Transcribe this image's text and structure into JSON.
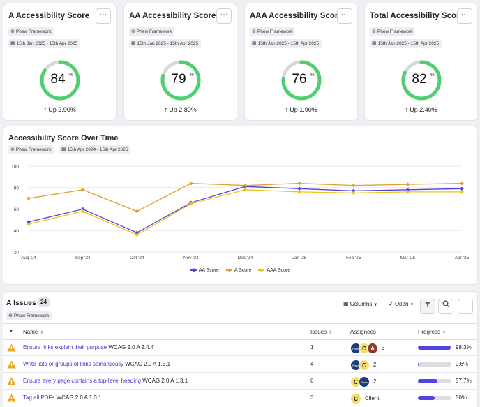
{
  "score_cards": [
    {
      "title": "A Accessibility Score",
      "framework": "Phew Framework",
      "date_range": "15th Jan 2025 - 15th Apr 2025",
      "score": 84,
      "score_suffix": "%",
      "trend": "Up 2.90%"
    },
    {
      "title": "AA Accessibility Score",
      "framework": "Phew Framework",
      "date_range": "15th Jan 2025 - 15th Apr 2025",
      "score": 79,
      "score_suffix": "%",
      "trend": "Up 2.80%"
    },
    {
      "title": "AAA Accessibility Score",
      "framework": "Phew Framework",
      "date_range": "15th Jan 2025 - 15th Apr 2025",
      "score": 76,
      "score_suffix": "%",
      "trend": "Up 1.90%"
    },
    {
      "title": "Total Accessibility Score",
      "framework": "Phew Framework",
      "date_range": "15th Jan 2025 - 15th Apr 2025",
      "score": 82,
      "score_suffix": "%",
      "trend": "Up 2.40%"
    }
  ],
  "more_label": "···",
  "gauge_color": "#4fcf6f",
  "gauge_track_color": "#d9d9d9",
  "chart": {
    "title": "Accessibility Score Over Time",
    "framework": "Phew Framework",
    "date_range": "15th Apr 2024 - 15th Apr 2025"
  },
  "chart_data": {
    "type": "line",
    "title": "Accessibility Score Over Time",
    "categories": [
      "Aug '24",
      "Sep '24",
      "Oct '24",
      "Nov '24",
      "Dec '24",
      "Jan '25",
      "Feb '25",
      "Mar '25",
      "Apr '25"
    ],
    "ylim": [
      20,
      100
    ],
    "yticks": [
      20,
      40,
      60,
      80,
      100
    ],
    "grid": true,
    "legend_position": "bottom",
    "series": [
      {
        "name": "AA Score",
        "color": "#5a3fd6",
        "values": [
          48,
          60,
          38,
          66,
          81,
          79,
          77,
          78,
          79
        ]
      },
      {
        "name": "A Score",
        "color": "#e0a030",
        "values": [
          70,
          78,
          58,
          84,
          82,
          84,
          82,
          83,
          84
        ]
      },
      {
        "name": "AAA Score",
        "color": "#ecc51a",
        "values": [
          46,
          58,
          36,
          65,
          78,
          76,
          75,
          76,
          76
        ]
      }
    ]
  },
  "issues": {
    "title": "A Issues",
    "count": "24",
    "framework": "Phew Framework",
    "columns_label": "Columns",
    "status_label": "Open",
    "headers": {
      "name": "Name",
      "issues": "Issues",
      "assignees": "Assignees",
      "progress": "Progress"
    },
    "rows": [
      {
        "link": "Ensure links explain their purpose",
        "ref": "WCAG 2.0 A 2.4.4",
        "issues": "1",
        "assignees": [
          "logo",
          "C",
          "A"
        ],
        "assignee_extra": "3",
        "progress": 0.983,
        "progress_label": "98.3%"
      },
      {
        "link": "Write lists or groups of links semantically",
        "ref": "WCAG 2.0 A 1.3.1",
        "issues": "4",
        "assignees": [
          "logo",
          "C"
        ],
        "assignee_extra": "2",
        "progress": 0.006,
        "progress_label": "0.6%"
      },
      {
        "link": "Ensure every page contains a top-level heading",
        "ref": "WCAG 2.0 A 1.3.1",
        "issues": "6",
        "assignees": [
          "C",
          "logo"
        ],
        "assignee_extra": "2",
        "progress": 0.577,
        "progress_label": "57.7%"
      },
      {
        "link": "Tag all PDFs",
        "ref": "WCAG 2.0 A 1.3.1",
        "issues": "3",
        "assignees": [
          "C"
        ],
        "assignee_extra": "Client",
        "progress": 0.5,
        "progress_label": "50%"
      }
    ]
  }
}
